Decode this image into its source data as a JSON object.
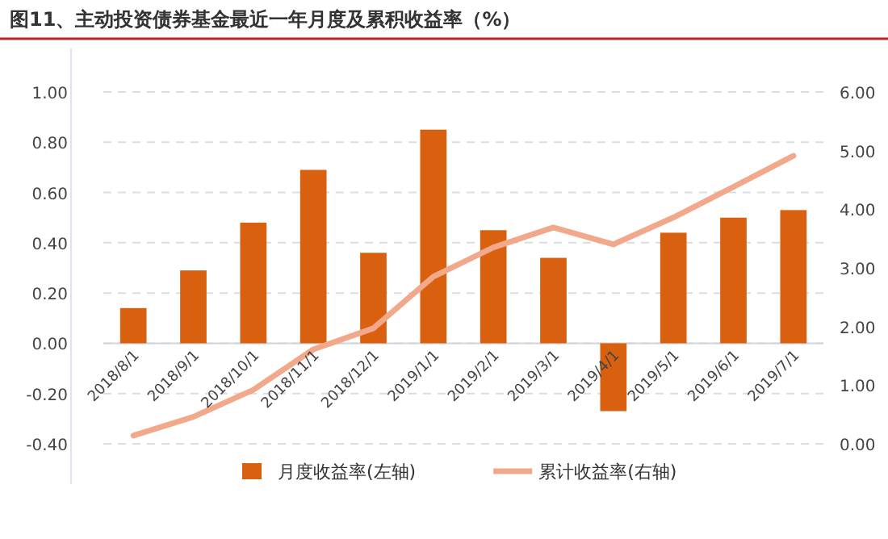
{
  "chart_data": {
    "type": "bar",
    "title": "图11、主动投资债券基金最近一年月度及累积收益率（%）",
    "categories": [
      "2018/8/1",
      "2018/9/1",
      "2018/10/1",
      "2018/11/1",
      "2018/12/1",
      "2019/1/1",
      "2019/2/1",
      "2019/3/1",
      "2019/4/1",
      "2019/5/1",
      "2019/6/1",
      "2019/7/1"
    ],
    "series": [
      {
        "name": "月度收益率(左轴)",
        "type": "bar",
        "color": "#d9600f",
        "values": [
          0.14,
          0.29,
          0.48,
          0.69,
          0.36,
          0.85,
          0.45,
          0.34,
          -0.27,
          0.44,
          0.5,
          0.53
        ]
      },
      {
        "name": "累计收益率(右轴)",
        "type": "line",
        "axis": "y2",
        "color": "#f2a88a",
        "values": [
          0.14,
          0.46,
          0.92,
          1.61,
          1.97,
          2.85,
          3.35,
          3.69,
          3.4,
          3.86,
          4.38,
          4.91
        ]
      }
    ],
    "ylim": [
      -0.4,
      1.0
    ],
    "yticks": [
      {
        "value": -0.4,
        "label": "-0.40"
      },
      {
        "value": -0.2,
        "label": "-0.20"
      },
      {
        "value": 0,
        "label": "0.00"
      },
      {
        "value": 0.2,
        "label": "0.20"
      },
      {
        "value": 0.4,
        "label": "0.40"
      },
      {
        "value": 0.6,
        "label": "0.60"
      },
      {
        "value": 0.8,
        "label": "0.80"
      },
      {
        "value": 1.0,
        "label": "1.00"
      }
    ],
    "y2lim": [
      0,
      6
    ],
    "y2ticks": [
      {
        "value": 0,
        "label": "0.00"
      },
      {
        "value": 1,
        "label": "1.00"
      },
      {
        "value": 2,
        "label": "2.00"
      },
      {
        "value": 3,
        "label": "3.00"
      },
      {
        "value": 4,
        "label": "4.00"
      },
      {
        "value": 5,
        "label": "5.00"
      },
      {
        "value": 6,
        "label": "6.00"
      }
    ],
    "grid": "y",
    "legend": "bottom"
  }
}
